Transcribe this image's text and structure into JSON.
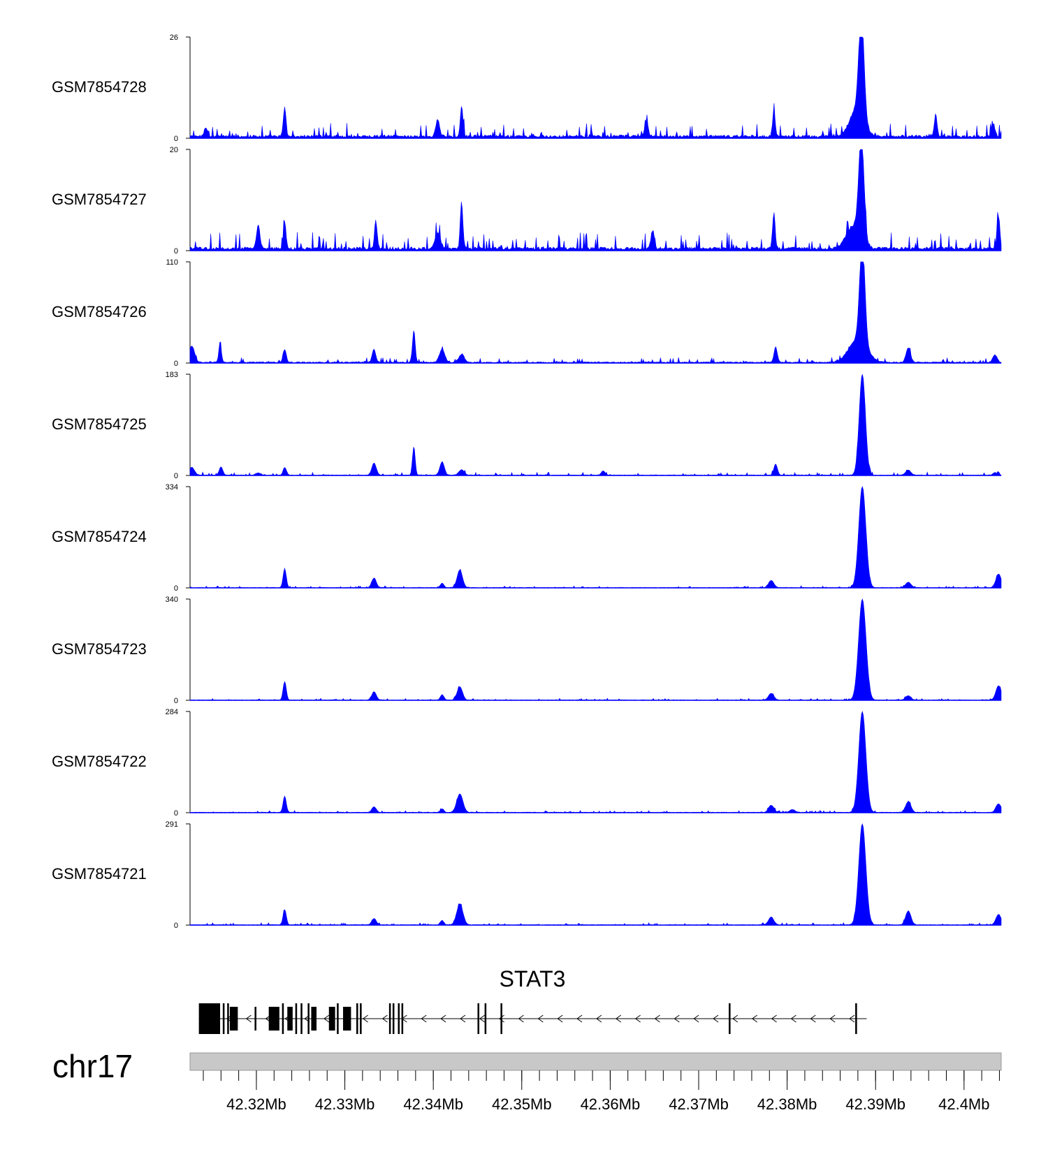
{
  "chart_data": {
    "type": "area",
    "chromosome": "chr17",
    "xlim": [
      42.3125,
      42.4042
    ],
    "x_unit": "Mb",
    "colors": {
      "signal": "#0000ff",
      "gene": "#000000",
      "ideogram": "#c8c8c8"
    },
    "tracks": [
      {
        "name": "GSM7854728",
        "ylim": [
          0,
          26
        ],
        "baseline": 0.7,
        "noise": 0.9,
        "peaks": [
          [
            42.3232,
            7.5,
            0.00015
          ],
          [
            42.3432,
            7.8,
            0.00015
          ],
          [
            42.3405,
            4.5,
            0.0002
          ],
          [
            42.3143,
            2.3,
            0.0002
          ],
          [
            42.3785,
            6.2,
            0.00015
          ],
          [
            42.3884,
            26,
            0.0003
          ],
          [
            42.3879,
            7.0,
            0.0008
          ],
          [
            42.3968,
            5.8,
            0.00015
          ],
          [
            42.3641,
            3.5,
            0.0002
          ],
          [
            42.4033,
            3.2,
            0.0002
          ]
        ]
      },
      {
        "name": "GSM7854727",
        "ylim": [
          0,
          20
        ],
        "baseline": 0.6,
        "noise": 0.9,
        "peaks": [
          [
            42.3202,
            4.5,
            0.0002
          ],
          [
            42.3232,
            5.5,
            0.00015
          ],
          [
            42.3335,
            5.5,
            0.00015
          ],
          [
            42.3432,
            9.2,
            0.00015
          ],
          [
            42.3405,
            3.0,
            0.0003
          ],
          [
            42.3785,
            7.0,
            0.00015
          ],
          [
            42.3884,
            20,
            0.0003
          ],
          [
            42.3875,
            4.5,
            0.0008
          ],
          [
            42.4039,
            6.5,
            0.00015
          ],
          [
            42.3648,
            3.5,
            0.0002
          ]
        ]
      },
      {
        "name": "GSM7854726",
        "ylim": [
          0,
          110
        ],
        "baseline": 1.2,
        "noise": 1.4,
        "peaks": [
          [
            42.3127,
            18,
            0.0003
          ],
          [
            42.3159,
            20,
            0.00015
          ],
          [
            42.3232,
            14,
            0.00018
          ],
          [
            42.3333,
            14,
            0.0002
          ],
          [
            42.3378,
            35,
            0.00015
          ],
          [
            42.341,
            14,
            0.0003
          ],
          [
            42.3432,
            9,
            0.0003
          ],
          [
            42.3787,
            17,
            0.00018
          ],
          [
            42.3885,
            110,
            0.0003
          ],
          [
            42.388,
            25,
            0.001
          ],
          [
            42.3937,
            16,
            0.00025
          ],
          [
            42.4035,
            8,
            0.00025
          ]
        ]
      },
      {
        "name": "GSM7854725",
        "ylim": [
          0,
          183
        ],
        "baseline": 1.0,
        "noise": 1.5,
        "peaks": [
          [
            42.3127,
            14,
            0.0003
          ],
          [
            42.316,
            15,
            0.0002
          ],
          [
            42.3202,
            4,
            0.0003
          ],
          [
            42.3232,
            14,
            0.00018
          ],
          [
            42.3333,
            22,
            0.00025
          ],
          [
            42.3378,
            52,
            0.00015
          ],
          [
            42.341,
            24,
            0.00025
          ],
          [
            42.3432,
            10,
            0.0003
          ],
          [
            42.3592,
            8,
            0.0002
          ],
          [
            42.3787,
            20,
            0.0002
          ],
          [
            42.3885,
            183,
            0.00035
          ],
          [
            42.3937,
            9,
            0.0003
          ],
          [
            42.4035,
            5,
            0.0002
          ]
        ]
      },
      {
        "name": "GSM7854724",
        "ylim": [
          0,
          334
        ],
        "baseline": 1.5,
        "noise": 1.5,
        "peaks": [
          [
            42.3232,
            62,
            0.00018
          ],
          [
            42.3333,
            32,
            0.00025
          ],
          [
            42.341,
            14,
            0.0002
          ],
          [
            42.343,
            58,
            0.0003
          ],
          [
            42.3782,
            24,
            0.0003
          ],
          [
            42.3885,
            334,
            0.0004
          ],
          [
            42.3937,
            18,
            0.0003
          ],
          [
            42.4039,
            45,
            0.0003
          ]
        ]
      },
      {
        "name": "GSM7854723",
        "ylim": [
          0,
          340
        ],
        "baseline": 1.5,
        "noise": 1.5,
        "peaks": [
          [
            42.3232,
            62,
            0.00018
          ],
          [
            42.3333,
            28,
            0.00025
          ],
          [
            42.341,
            18,
            0.0002
          ],
          [
            42.343,
            45,
            0.0003
          ],
          [
            42.3782,
            22,
            0.0003
          ],
          [
            42.3885,
            340,
            0.00042
          ],
          [
            42.3937,
            14,
            0.0003
          ],
          [
            42.4039,
            48,
            0.0003
          ]
        ]
      },
      {
        "name": "GSM7854722",
        "ylim": [
          0,
          284
        ],
        "baseline": 1.5,
        "noise": 1.5,
        "peaks": [
          [
            42.3232,
            45,
            0.00018
          ],
          [
            42.3333,
            16,
            0.00025
          ],
          [
            42.341,
            10,
            0.0002
          ],
          [
            42.343,
            52,
            0.00035
          ],
          [
            42.3782,
            20,
            0.0003
          ],
          [
            42.3806,
            8,
            0.0003
          ],
          [
            42.3885,
            284,
            0.0004
          ],
          [
            42.3937,
            30,
            0.0003
          ],
          [
            42.4039,
            24,
            0.0003
          ]
        ]
      },
      {
        "name": "GSM7854721",
        "ylim": [
          0,
          291
        ],
        "baseline": 1.5,
        "noise": 1.5,
        "peaks": [
          [
            42.3232,
            44,
            0.00018
          ],
          [
            42.3333,
            18,
            0.00025
          ],
          [
            42.341,
            12,
            0.0002
          ],
          [
            42.343,
            60,
            0.00035
          ],
          [
            42.3782,
            22,
            0.0003
          ],
          [
            42.3885,
            291,
            0.0004
          ],
          [
            42.3937,
            40,
            0.0003
          ],
          [
            42.4039,
            30,
            0.0003
          ]
        ]
      }
    ],
    "gene": {
      "name": "STAT3",
      "strand": "-",
      "start": 42.3135,
      "end": 42.389,
      "exons": [
        [
          42.3135,
          42.3159,
          "tall"
        ],
        [
          42.3162,
          42.3164,
          "tall"
        ],
        [
          42.3167,
          42.3169,
          "tall"
        ],
        [
          42.317,
          42.3179,
          "mid"
        ],
        [
          42.3198,
          42.32,
          "mid"
        ],
        [
          42.3214,
          42.3226,
          "mid"
        ],
        [
          42.3229,
          42.3231,
          "tall"
        ],
        [
          42.3235,
          42.3241,
          "mid"
        ],
        [
          42.3244,
          42.3246,
          "tall"
        ],
        [
          42.325,
          42.3252,
          "tall"
        ],
        [
          42.3258,
          42.326,
          "tall"
        ],
        [
          42.3262,
          42.3268,
          "mid"
        ],
        [
          42.3282,
          42.3289,
          "mid"
        ],
        [
          42.3291,
          42.3293,
          "tall"
        ],
        [
          42.3298,
          42.3307,
          "mid"
        ],
        [
          42.3313,
          42.3315,
          "tall"
        ],
        [
          42.3317,
          42.3319,
          "tall"
        ],
        [
          42.335,
          42.3352,
          "tall"
        ],
        [
          42.3354,
          42.3356,
          "tall"
        ],
        [
          42.336,
          42.3362,
          "tall"
        ],
        [
          42.3364,
          42.3366,
          "tall"
        ],
        [
          42.345,
          42.3452,
          "tall"
        ],
        [
          42.3458,
          42.346,
          "tall"
        ],
        [
          42.3476,
          42.3478,
          "tall"
        ],
        [
          42.3734,
          42.3736,
          "tall"
        ],
        [
          42.3877,
          42.3879,
          "tall"
        ]
      ]
    },
    "x_ticks": [
      42.32,
      42.33,
      42.34,
      42.35,
      42.36,
      42.37,
      42.38,
      42.39,
      42.4
    ],
    "x_tick_labels": [
      "42.32Mb",
      "42.33Mb",
      "42.34Mb",
      "42.35Mb",
      "42.36Mb",
      "42.37Mb",
      "42.38Mb",
      "42.39Mb",
      "42.4Mb"
    ],
    "minor_tick_step": 0.002
  }
}
